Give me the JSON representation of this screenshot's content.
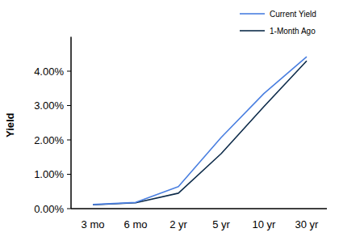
{
  "chart_data": {
    "type": "line",
    "y_label": "Yield",
    "categories": [
      "3 mo",
      "6 mo",
      "2 yr",
      "5 yr",
      "10 yr",
      "30 yr"
    ],
    "series": [
      {
        "name": "Current Yield",
        "color": "#4a7fe0",
        "values": [
          0.12,
          0.18,
          0.64,
          2.07,
          3.35,
          4.42
        ]
      },
      {
        "name": "1-Month Ago",
        "color": "#0d2b4a",
        "values": [
          0.11,
          0.17,
          0.45,
          1.6,
          2.97,
          4.3
        ]
      }
    ],
    "ylim": [
      0,
      5
    ],
    "yticks": [
      {
        "value": 0,
        "label": "0.00%"
      },
      {
        "value": 1,
        "label": "1.00%"
      },
      {
        "value": 2,
        "label": "2.00%"
      },
      {
        "value": 3,
        "label": "3.00%"
      },
      {
        "value": 4,
        "label": "4.00%"
      }
    ],
    "grid": false,
    "legend": "top-right"
  }
}
